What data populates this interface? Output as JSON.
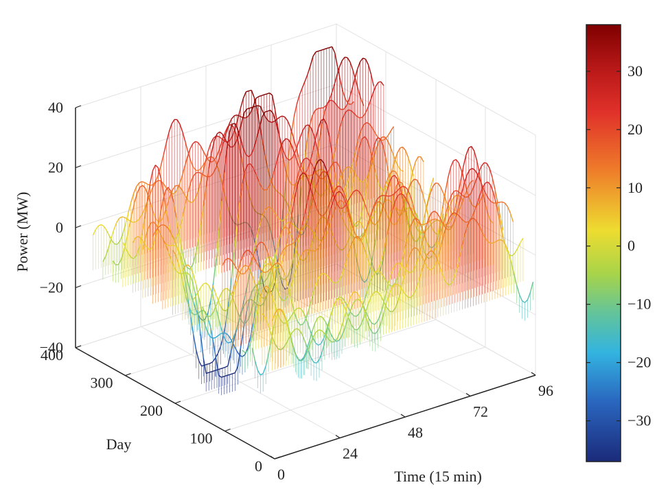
{
  "chart_data": {
    "type": "surface3d",
    "render": "waterfall-mesh",
    "xlabel": "Time (15 min)",
    "ylabel": "Day",
    "zlabel": "Power (MW)",
    "x_ticks": [
      0,
      24,
      48,
      72,
      96
    ],
    "y_ticks": [
      0,
      100,
      200,
      300,
      400
    ],
    "z_ticks": [
      -40,
      -20,
      0,
      20,
      40
    ],
    "x_tick_labels": [
      "0",
      "24",
      "48",
      "72",
      "96"
    ],
    "y_tick_labels": [
      "0",
      "100",
      "200",
      "300",
      "400"
    ],
    "z_tick_labels": [
      "−40",
      "−20",
      "0",
      "20",
      "40"
    ],
    "xlim": [
      0,
      96
    ],
    "ylim": [
      0,
      400
    ],
    "zlim": [
      -40,
      40
    ],
    "grid": true,
    "colormap": "jet",
    "colorbar": {
      "placement": "right",
      "range": [
        -37,
        38
      ],
      "ticks": [
        30,
        20,
        10,
        0,
        -10,
        -20,
        -30
      ],
      "tick_labels": [
        "30",
        "20",
        "10",
        "0",
        "−10",
        "−20",
        "−30"
      ]
    },
    "data_summary": {
      "time_steps": 96,
      "days": 365,
      "power_min": -37,
      "power_max": 38
    },
    "colors": {
      "jet": [
        "#7f0000",
        "#d02020",
        "#ee7a2a",
        "#eedc30",
        "#9ed14e",
        "#45c0d9",
        "#1f5ab0",
        "#1b2a7a"
      ]
    }
  }
}
